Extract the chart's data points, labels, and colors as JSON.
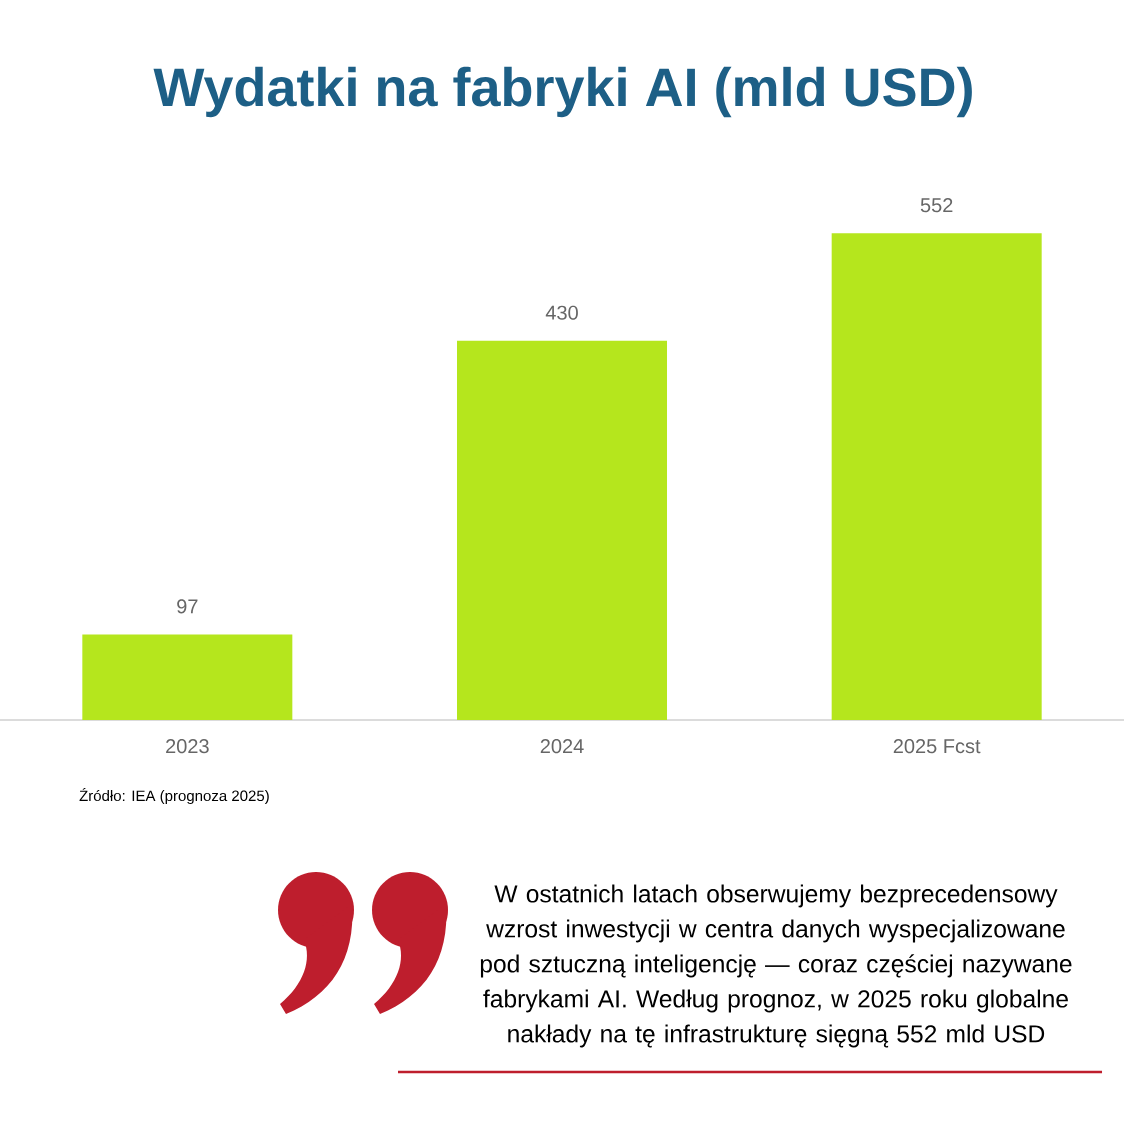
{
  "chart_data": {
    "type": "bar",
    "title": "Wydatki na fabryki AI (mld USD)",
    "categories": [
      "2023",
      "2024",
      "2025 Fcst"
    ],
    "values": [
      97,
      430,
      552
    ],
    "color": "#b5e61d",
    "data_labels": true,
    "annotations": [
      "Źródło: IEA (prognoza 2025)",
      "W ostatnich latach obserwujemy bezprecedensowy wzrost inwestycji w centra danych wyspecjalizowane pod sztuczną inteligencję — coraz częściej nazywane fabrykami AI. Według prognoz, w 2025 roku globalne nakłady na tę infrastrukturę sięgną 552 mld USD"
    ]
  }
}
